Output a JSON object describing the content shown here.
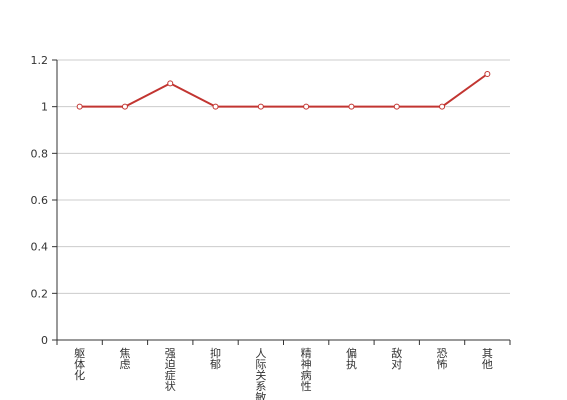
{
  "chart_data": {
    "type": "line",
    "categories": [
      "躯体化",
      "焦虑",
      "强迫症状",
      "抑郁",
      "人际关系敏感",
      "精神病性",
      "偏执",
      "敌对",
      "恐怖",
      "其他"
    ],
    "series": [
      {
        "values": [
          1,
          1,
          1.1,
          1,
          1,
          1,
          1,
          1,
          1,
          1.14
        ]
      }
    ],
    "ylim": [
      0,
      1.2
    ],
    "yticks": [
      "0",
      "0.2",
      "0.4",
      "0.6",
      "0.8",
      "1",
      "1.2"
    ],
    "grid": true,
    "legend": "none",
    "line_color": "#c23531"
  }
}
